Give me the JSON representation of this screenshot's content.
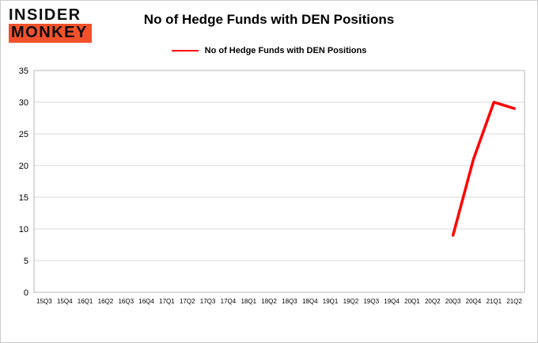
{
  "logo": {
    "line1": "INSIDER",
    "line2": "MONKEY",
    "accent_color": "#f2512b"
  },
  "chart_data": {
    "type": "line",
    "title": "No of Hedge Funds with DEN Positions",
    "legend": "No of Hedge Funds with DEN Positions",
    "categories": [
      "15Q3",
      "15Q4",
      "16Q1",
      "16Q2",
      "16Q3",
      "16Q4",
      "17Q1",
      "17Q2",
      "17Q3",
      "17Q4",
      "18Q1",
      "18Q2",
      "18Q3",
      "18Q4",
      "19Q1",
      "19Q2",
      "19Q3",
      "19Q4",
      "20Q1",
      "20Q2",
      "20Q3",
      "20Q4",
      "21Q1",
      "21Q2"
    ],
    "series": [
      {
        "name": "No of Hedge Funds with DEN Positions",
        "color": "#ff0000",
        "values": [
          null,
          null,
          null,
          null,
          null,
          null,
          null,
          null,
          null,
          null,
          null,
          null,
          null,
          null,
          null,
          null,
          null,
          null,
          null,
          null,
          9,
          21,
          30,
          29
        ]
      }
    ],
    "ylim": [
      0,
      35
    ],
    "yticks": [
      0,
      5,
      10,
      15,
      20,
      25,
      30,
      35
    ],
    "grid": true,
    "legend_position": "top",
    "grid_color": "#d9d9d9",
    "box_color": "#b7b7b7"
  }
}
